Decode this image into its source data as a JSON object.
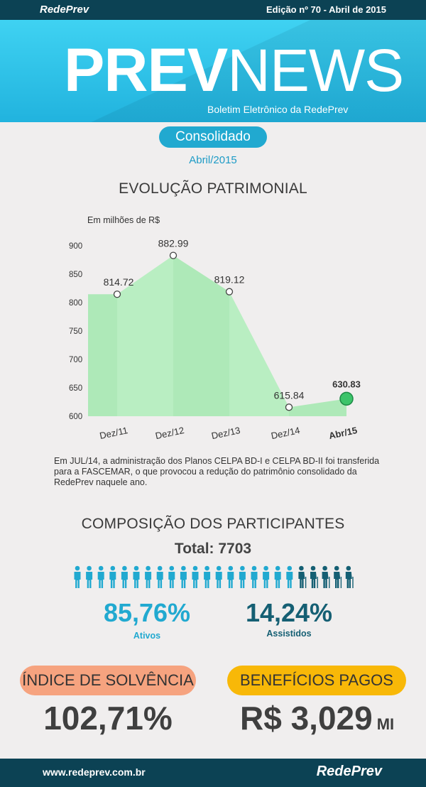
{
  "header": {
    "brand": "RedePrev",
    "edition": "Edição nº 70 - Abril de 2015"
  },
  "banner": {
    "logo_prev": "PREV",
    "logo_news": "NEWS",
    "subtitle": "Boletim Eletrônico da RedePrev"
  },
  "section": {
    "badge": "Consolidado",
    "date": "Abril/2015"
  },
  "evolucao": {
    "title": "EVOLUÇÃO PATRIMONIAL",
    "note": "Em JUL/14, a administração dos Planos CELPA BD-I e CELPA BD-II foi transferida para a FASCEMAR, o que provocou a redução do patrimônio consolidado da RedePrev naquele ano."
  },
  "chart_data": {
    "type": "area",
    "ylabel": "Em milhões de R$",
    "categories": [
      "Dez/11",
      "Dez/12",
      "Dez/13",
      "Dez/14",
      "Abr/15"
    ],
    "values": [
      814.72,
      882.99,
      819.12,
      615.84,
      630.83
    ],
    "value_labels": [
      "814.72",
      "882.99",
      "819.12",
      "615.84",
      "630.83"
    ],
    "yticks": [
      "900",
      "850",
      "800",
      "750",
      "700",
      "650",
      "600"
    ],
    "ylim": [
      600,
      900
    ],
    "fill_color": "#a9e7b4",
    "highlight_color": "#3cc46a"
  },
  "participantes": {
    "title": "COMPOSIÇÃO DOS PARTICIPANTES",
    "total": "Total: 7703",
    "ativos_pct": "85,76%",
    "ativos_label": "Ativos",
    "assistidos_pct": "14,24%",
    "assistidos_label": "Assistidos",
    "ativos_color": "#21a9d0",
    "assistidos_color": "#155f73",
    "ativos_icons": 19,
    "assistidos_icons": 5
  },
  "solvencia": {
    "label": "ÍNDICE DE SOLVÊNCIA",
    "value": "102,71%"
  },
  "beneficios": {
    "label": "BENEFÍCIOS PAGOS",
    "value": "R$ 3,029",
    "unit": "MI"
  },
  "footer": {
    "url": "www.redeprev.com.br",
    "brand": "RedePrev"
  }
}
